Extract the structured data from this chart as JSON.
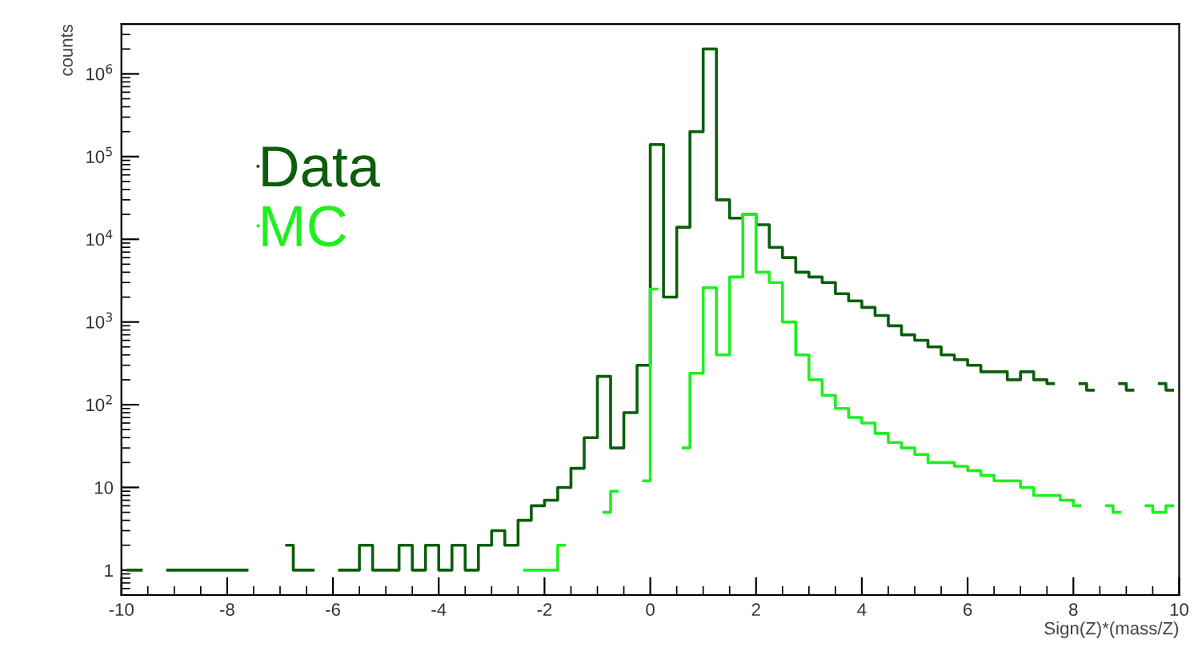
{
  "chart_data": {
    "type": "step",
    "xlabel": "Sign(Z)*(mass/Z)",
    "ylabel": "counts",
    "log": true,
    "grid": false,
    "legend": "top left",
    "x": [
      -9.875,
      -9.625,
      -9.375,
      -9.125,
      -8.875,
      -8.625,
      -8.375,
      -8.125,
      -7.875,
      -7.625,
      -7.375,
      -7.125,
      -6.875,
      -6.625,
      -6.375,
      -6.125,
      -5.875,
      -5.625,
      -5.375,
      -5.125,
      -4.875,
      -4.625,
      -4.375,
      -4.125,
      -3.875,
      -3.625,
      -3.375,
      -3.125,
      -2.875,
      -2.625,
      -2.375,
      -2.125,
      -1.875,
      -1.625,
      -1.375,
      -1.125,
      -0.875,
      -0.625,
      -0.375,
      -0.125,
      0.125,
      0.375,
      0.625,
      0.875,
      1.125,
      1.375,
      1.625,
      1.875,
      2.125,
      2.375,
      2.625,
      2.875,
      3.125,
      3.375,
      3.625,
      3.875,
      4.125,
      4.375,
      4.625,
      4.875,
      5.125,
      5.375,
      5.625,
      5.875,
      6.125,
      6.375,
      6.625,
      6.875,
      7.125,
      7.375,
      7.625,
      7.875,
      8.125,
      8.375,
      8.625,
      8.875,
      9.125,
      9.375,
      9.625,
      9.875
    ],
    "series": [
      {
        "name": "Data",
        "color": "#0b5e0b",
        "values": [
          1,
          1,
          null,
          1,
          1,
          1,
          1,
          1,
          1,
          1,
          null,
          null,
          2,
          1,
          1,
          null,
          1,
          1,
          2,
          1,
          1,
          2,
          1,
          2,
          1,
          2,
          1,
          2,
          3,
          2,
          4,
          6,
          7,
          10,
          17,
          40,
          220,
          30,
          80,
          300,
          140000,
          2000,
          14000,
          200000,
          2000000,
          30000,
          18000,
          20000,
          15000,
          8000,
          6000,
          4000,
          3500,
          3000,
          2200,
          1800,
          1500,
          1200,
          900,
          700,
          600,
          500,
          400,
          350,
          300,
          250,
          250,
          200,
          250,
          200,
          180,
          null,
          180,
          150,
          null,
          180,
          150,
          null,
          180,
          150
        ]
      },
      {
        "name": "MC",
        "color": "#1fef1f",
        "values": [
          null,
          null,
          null,
          null,
          null,
          null,
          null,
          null,
          null,
          null,
          null,
          null,
          null,
          null,
          null,
          null,
          null,
          null,
          null,
          null,
          null,
          null,
          null,
          null,
          null,
          null,
          null,
          null,
          null,
          null,
          1,
          1,
          1,
          2,
          null,
          null,
          5,
          9,
          null,
          12,
          2500,
          null,
          30,
          240,
          2600,
          400,
          3500,
          20000,
          4000,
          3000,
          1000,
          400,
          200,
          130,
          90,
          70,
          60,
          45,
          35,
          30,
          25,
          20,
          20,
          18,
          16,
          14,
          12,
          12,
          10,
          8,
          8,
          7,
          6,
          null,
          6,
          5,
          null,
          6,
          5,
          6
        ]
      }
    ],
    "xlim": [
      -10,
      10
    ],
    "xticks": [
      -10,
      -8,
      -6,
      -4,
      -2,
      0,
      2,
      4,
      6,
      8,
      10
    ],
    "ylim": [
      0.5,
      4000000
    ],
    "yticks": [
      1,
      10,
      {
        "value": 100,
        "label": "10$^{2}$"
      },
      {
        "value": 1000,
        "label": "10$^{3}$"
      },
      {
        "value": 10000,
        "label": "10$^{4}$"
      },
      {
        "value": 100000,
        "label": "10$^{5}$"
      },
      {
        "value": 1000000,
        "label": "10$^{6}$"
      }
    ]
  }
}
